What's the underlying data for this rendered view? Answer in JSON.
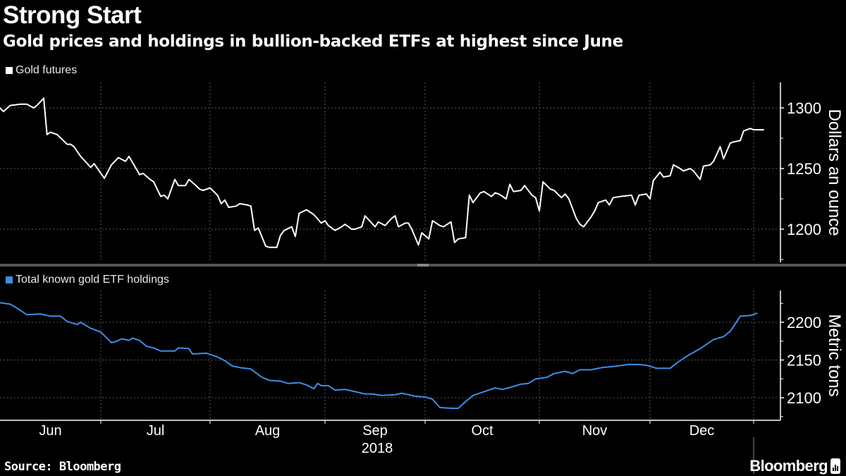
{
  "header": {
    "title": "Strong Start",
    "subtitle": "Gold prices and holdings in bullion-backed ETFs at highest since June"
  },
  "footer": {
    "source": "Source: Bloomberg",
    "brand": "Bloomberg"
  },
  "colors": {
    "background": "#000000",
    "gold_line": "#ffffff",
    "etf_line": "#3d8ee6",
    "grid": "#5a5a5a"
  },
  "chart_data": [
    {
      "type": "line",
      "title": "",
      "legend": "top-left",
      "grid": true,
      "ylabel": "Dollars an ounce",
      "ylim": [
        1175,
        1320
      ],
      "yticks": [
        1200,
        1250,
        1300
      ],
      "xlabels": [
        "Jun",
        "Jul",
        "Aug",
        "Sep",
        "Oct",
        "Nov",
        "Dec"
      ],
      "year_label": "2018",
      "series": [
        {
          "name": "Gold futures",
          "color": "#ffffff",
          "points": [
            [
              "2018-06-01",
              1300
            ],
            [
              "2018-06-02",
              1297
            ],
            [
              "2018-06-04",
              1302
            ],
            [
              "2018-06-07",
              1303
            ],
            [
              "2018-06-09",
              1303
            ],
            [
              "2018-06-11",
              1300
            ],
            [
              "2018-06-12",
              1302
            ],
            [
              "2018-06-14",
              1308
            ],
            [
              "2018-06-15",
              1278
            ],
            [
              "2018-06-16",
              1280
            ],
            [
              "2018-06-18",
              1278
            ],
            [
              "2018-06-21",
              1270
            ],
            [
              "2018-06-22",
              1270
            ],
            [
              "2018-06-23",
              1268
            ],
            [
              "2018-06-25",
              1260
            ],
            [
              "2018-06-26",
              1257
            ],
            [
              "2018-06-28",
              1251
            ],
            [
              "2018-06-29",
              1254
            ],
            [
              "2018-07-02",
              1242
            ],
            [
              "2018-07-04",
              1253
            ],
            [
              "2018-07-06",
              1259
            ],
            [
              "2018-07-08",
              1256
            ],
            [
              "2018-07-09",
              1260
            ],
            [
              "2018-07-10",
              1255
            ],
            [
              "2018-07-12",
              1245
            ],
            [
              "2018-07-13",
              1246
            ],
            [
              "2018-07-15",
              1241
            ],
            [
              "2018-07-16",
              1239
            ],
            [
              "2018-07-18",
              1227
            ],
            [
              "2018-07-19",
              1228
            ],
            [
              "2018-07-20",
              1225
            ],
            [
              "2018-07-22",
              1241
            ],
            [
              "2018-07-23",
              1236
            ],
            [
              "2018-07-25",
              1236
            ],
            [
              "2018-07-26",
              1241
            ],
            [
              "2018-07-28",
              1236
            ],
            [
              "2018-07-29",
              1233
            ],
            [
              "2018-07-30",
              1232
            ],
            [
              "2018-08-01",
              1234
            ],
            [
              "2018-08-03",
              1228
            ],
            [
              "2018-08-04",
              1221
            ],
            [
              "2018-08-05",
              1224
            ],
            [
              "2018-08-06",
              1218
            ],
            [
              "2018-08-08",
              1219
            ],
            [
              "2018-08-09",
              1221
            ],
            [
              "2018-08-11",
              1220
            ],
            [
              "2018-08-12",
              1219
            ],
            [
              "2018-08-13",
              1199
            ],
            [
              "2018-08-14",
              1201
            ],
            [
              "2018-08-16",
              1186
            ],
            [
              "2018-08-17",
              1185
            ],
            [
              "2018-08-19",
              1185
            ],
            [
              "2018-08-20",
              1195
            ],
            [
              "2018-08-21",
              1199
            ],
            [
              "2018-08-23",
              1202
            ],
            [
              "2018-08-24",
              1194
            ],
            [
              "2018-08-25",
              1213
            ],
            [
              "2018-08-27",
              1216
            ],
            [
              "2018-08-28",
              1214
            ],
            [
              "2018-08-29",
              1212
            ],
            [
              "2018-08-31",
              1205
            ],
            [
              "2018-09-01",
              1207
            ],
            [
              "2018-09-02",
              1203
            ],
            [
              "2018-09-04",
              1199
            ],
            [
              "2018-09-06",
              1202
            ],
            [
              "2018-09-07",
              1204
            ],
            [
              "2018-09-09",
              1200
            ],
            [
              "2018-09-10",
              1200
            ],
            [
              "2018-09-12",
              1202
            ],
            [
              "2018-09-13",
              1211
            ],
            [
              "2018-09-14",
              1208
            ],
            [
              "2018-09-16",
              1202
            ],
            [
              "2018-09-17",
              1206
            ],
            [
              "2018-09-19",
              1203
            ],
            [
              "2018-09-21",
              1209
            ],
            [
              "2018-09-22",
              1211
            ],
            [
              "2018-09-23",
              1202
            ],
            [
              "2018-09-25",
              1205
            ],
            [
              "2018-09-26",
              1205
            ],
            [
              "2018-09-27",
              1200
            ],
            [
              "2018-09-29",
              1187
            ],
            [
              "2018-09-30",
              1197
            ],
            [
              "2018-10-02",
              1192
            ],
            [
              "2018-10-03",
              1207
            ],
            [
              "2018-10-05",
              1203
            ],
            [
              "2018-10-06",
              1202
            ],
            [
              "2018-10-08",
              1206
            ],
            [
              "2018-10-09",
              1189
            ],
            [
              "2018-10-10",
              1192
            ],
            [
              "2018-10-12",
              1193
            ],
            [
              "2018-10-13",
              1228
            ],
            [
              "2018-10-14",
              1222
            ],
            [
              "2018-10-16",
              1230
            ],
            [
              "2018-10-17",
              1231
            ],
            [
              "2018-10-19",
              1227
            ],
            [
              "2018-10-20",
              1230
            ],
            [
              "2018-10-21",
              1229
            ],
            [
              "2018-10-23",
              1225
            ],
            [
              "2018-10-24",
              1237
            ],
            [
              "2018-10-25",
              1231
            ],
            [
              "2018-10-27",
              1232
            ],
            [
              "2018-10-28",
              1236
            ],
            [
              "2018-10-30",
              1228
            ],
            [
              "2018-10-31",
              1226
            ],
            [
              "2018-11-01",
              1215
            ],
            [
              "2018-11-02",
              1239
            ],
            [
              "2018-11-04",
              1233
            ],
            [
              "2018-11-05",
              1232
            ],
            [
              "2018-11-07",
              1226
            ],
            [
              "2018-11-08",
              1229
            ],
            [
              "2018-11-09",
              1225
            ],
            [
              "2018-11-11",
              1209
            ],
            [
              "2018-11-12",
              1204
            ],
            [
              "2018-11-13",
              1202
            ],
            [
              "2018-11-15",
              1210
            ],
            [
              "2018-11-16",
              1215
            ],
            [
              "2018-11-17",
              1222
            ],
            [
              "2018-11-19",
              1224
            ],
            [
              "2018-11-20",
              1220
            ],
            [
              "2018-11-21",
              1226
            ],
            [
              "2018-11-23",
              1227
            ],
            [
              "2018-11-26",
              1228
            ],
            [
              "2018-11-27",
              1220
            ],
            [
              "2018-11-28",
              1228
            ],
            [
              "2018-11-30",
              1229
            ],
            [
              "2018-12-01",
              1225
            ],
            [
              "2018-12-02",
              1240
            ],
            [
              "2018-12-04",
              1247
            ],
            [
              "2018-12-05",
              1243
            ],
            [
              "2018-12-07",
              1244
            ],
            [
              "2018-12-08",
              1253
            ],
            [
              "2018-12-10",
              1250
            ],
            [
              "2018-12-11",
              1248
            ],
            [
              "2018-12-13",
              1250
            ],
            [
              "2018-12-14",
              1248
            ],
            [
              "2018-12-16",
              1241
            ],
            [
              "2018-12-17",
              1252
            ],
            [
              "2018-12-19",
              1253
            ],
            [
              "2018-12-20",
              1256
            ],
            [
              "2018-12-22",
              1268
            ],
            [
              "2018-12-23",
              1258
            ],
            [
              "2018-12-25",
              1271
            ],
            [
              "2018-12-26",
              1272
            ],
            [
              "2018-12-28",
              1273
            ],
            [
              "2018-12-29",
              1281
            ],
            [
              "2018-12-31",
              1283
            ],
            [
              "2019-01-01",
              1282
            ],
            [
              "2019-01-04",
              1282
            ]
          ]
        }
      ]
    },
    {
      "type": "line",
      "title": "",
      "legend": "top-left",
      "grid": true,
      "ylabel": "Metric tons",
      "ylim": [
        2068,
        2242
      ],
      "yticks": [
        2100,
        2150,
        2200
      ],
      "xlabels": [
        "Jun",
        "Jul",
        "Aug",
        "Sep",
        "Oct",
        "Nov",
        "Dec"
      ],
      "year_label": "2018",
      "series": [
        {
          "name": "Total known gold ETF holdings",
          "color": "#3d8ee6",
          "points": [
            [
              "2018-06-01",
              2226
            ],
            [
              "2018-06-04",
              2224
            ],
            [
              "2018-06-06",
              2219
            ],
            [
              "2018-06-09",
              2210
            ],
            [
              "2018-06-13",
              2211
            ],
            [
              "2018-06-16",
              2208
            ],
            [
              "2018-06-19",
              2208
            ],
            [
              "2018-06-21",
              2201
            ],
            [
              "2018-06-24",
              2197
            ],
            [
              "2018-06-25",
              2200
            ],
            [
              "2018-06-28",
              2192
            ],
            [
              "2018-07-01",
              2187
            ],
            [
              "2018-07-04",
              2173
            ],
            [
              "2018-07-05",
              2174
            ],
            [
              "2018-07-07",
              2178
            ],
            [
              "2018-07-09",
              2176
            ],
            [
              "2018-07-10",
              2179
            ],
            [
              "2018-07-12",
              2176
            ],
            [
              "2018-07-14",
              2168
            ],
            [
              "2018-07-16",
              2166
            ],
            [
              "2018-07-18",
              2162
            ],
            [
              "2018-07-22",
              2162
            ],
            [
              "2018-07-23",
              2166
            ],
            [
              "2018-07-26",
              2165
            ],
            [
              "2018-07-27",
              2158
            ],
            [
              "2018-07-31",
              2159
            ],
            [
              "2018-08-03",
              2154
            ],
            [
              "2018-08-05",
              2149
            ],
            [
              "2018-08-07",
              2142
            ],
            [
              "2018-08-09",
              2140
            ],
            [
              "2018-08-12",
              2138
            ],
            [
              "2018-08-15",
              2127
            ],
            [
              "2018-08-17",
              2123
            ],
            [
              "2018-08-20",
              2122
            ],
            [
              "2018-08-22",
              2119
            ],
            [
              "2018-08-25",
              2120
            ],
            [
              "2018-08-27",
              2117
            ],
            [
              "2018-08-29",
              2112
            ],
            [
              "2018-08-30",
              2119
            ],
            [
              "2018-08-31",
              2116
            ],
            [
              "2018-09-02",
              2116
            ],
            [
              "2018-09-04",
              2110
            ],
            [
              "2018-09-07",
              2111
            ],
            [
              "2018-09-10",
              2108
            ],
            [
              "2018-09-13",
              2105
            ],
            [
              "2018-09-15",
              2105
            ],
            [
              "2018-09-18",
              2103
            ],
            [
              "2018-09-22",
              2104
            ],
            [
              "2018-09-24",
              2106
            ],
            [
              "2018-09-26",
              2104
            ],
            [
              "2018-09-28",
              2102
            ],
            [
              "2018-10-01",
              2101
            ],
            [
              "2018-10-03",
              2098
            ],
            [
              "2018-10-05",
              2087
            ],
            [
              "2018-10-08",
              2086
            ],
            [
              "2018-10-10",
              2086
            ],
            [
              "2018-10-12",
              2095
            ],
            [
              "2018-10-14",
              2103
            ],
            [
              "2018-10-17",
              2108
            ],
            [
              "2018-10-20",
              2113
            ],
            [
              "2018-10-22",
              2111
            ],
            [
              "2018-10-25",
              2115
            ],
            [
              "2018-10-27",
              2118
            ],
            [
              "2018-10-29",
              2119
            ],
            [
              "2018-10-31",
              2125
            ],
            [
              "2018-11-03",
              2127
            ],
            [
              "2018-11-05",
              2132
            ],
            [
              "2018-11-08",
              2135
            ],
            [
              "2018-11-10",
              2132
            ],
            [
              "2018-11-12",
              2137
            ],
            [
              "2018-11-15",
              2137
            ],
            [
              "2018-11-18",
              2140
            ],
            [
              "2018-11-22",
              2142
            ],
            [
              "2018-11-25",
              2144
            ],
            [
              "2018-11-28",
              2144
            ],
            [
              "2018-11-30",
              2143
            ],
            [
              "2018-12-03",
              2139
            ],
            [
              "2018-12-07",
              2139
            ],
            [
              "2018-12-09",
              2146
            ],
            [
              "2018-12-12",
              2155
            ],
            [
              "2018-12-16",
              2165
            ],
            [
              "2018-12-20",
              2177
            ],
            [
              "2018-12-23",
              2181
            ],
            [
              "2018-12-25",
              2188
            ],
            [
              "2018-12-28",
              2208
            ],
            [
              "2018-12-31",
              2209
            ],
            [
              "2019-01-02",
              2212
            ]
          ]
        }
      ]
    }
  ]
}
